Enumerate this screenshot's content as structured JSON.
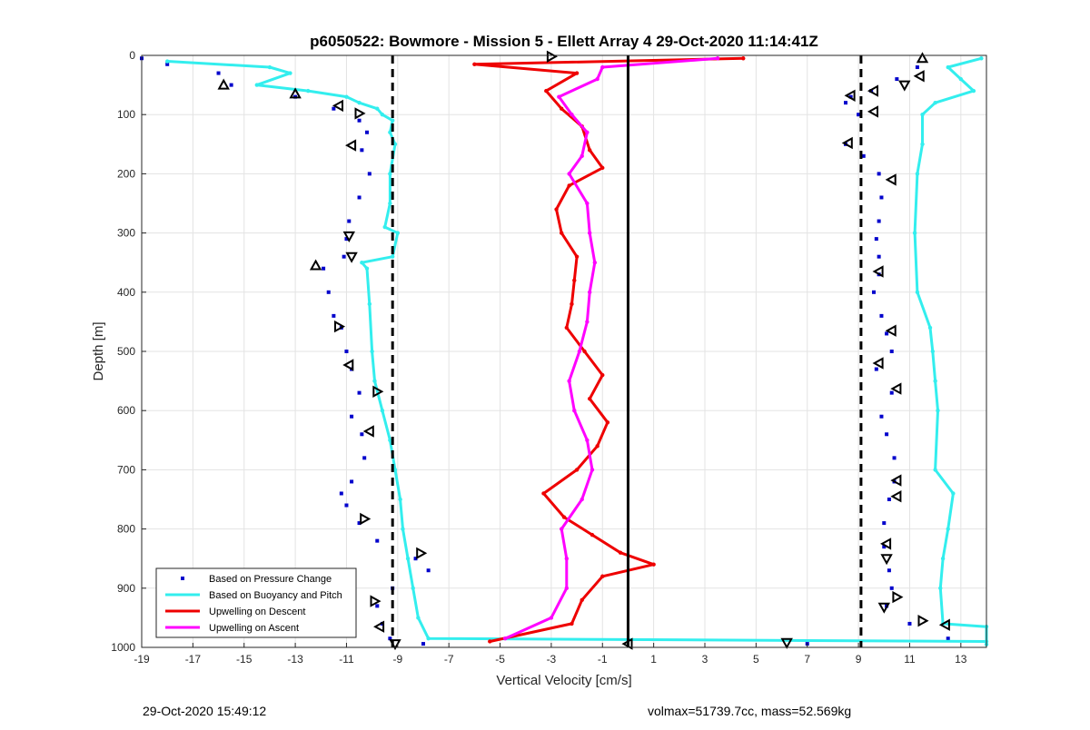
{
  "chart_data": {
    "type": "scatter",
    "title": "p6050522: Bowmore - Mission 5 - Ellett Array 4 29-Oct-2020 11:14:41Z",
    "xlabel": "Vertical Velocity [cm/s]",
    "ylabel": "Depth [m]",
    "xlim": [
      -19,
      14
    ],
    "ylim": [
      0,
      1000
    ],
    "y_reversed": true,
    "xticks": [
      -19,
      -17,
      -15,
      -13,
      -11,
      -9,
      -7,
      -5,
      -3,
      -1,
      1,
      3,
      5,
      7,
      9,
      11,
      13
    ],
    "yticks": [
      0,
      100,
      200,
      300,
      400,
      500,
      600,
      700,
      800,
      900,
      1000
    ],
    "grid": true,
    "legend_position": "bottom-left",
    "reference_lines": [
      {
        "x": -9.2,
        "style": "dashed",
        "color": "#000000"
      },
      {
        "x": 0,
        "style": "solid",
        "color": "#000000"
      },
      {
        "x": 9.1,
        "style": "dashed",
        "color": "#000000"
      }
    ],
    "series": [
      {
        "name": "Based on Pressure Change",
        "color": "#0000cc",
        "marker": "dot",
        "groups": [
          {
            "depth": [
              5,
              15,
              30,
              50,
              70,
              90,
              110,
              130,
              160,
              200,
              240,
              280,
              310,
              340,
              360,
              400,
              440,
              460,
              500,
              530,
              570,
              610,
              640,
              680,
              720,
              740,
              760,
              790,
              820,
              850,
              870,
              900,
              930,
              960,
              985
            ],
            "x": [
              -19,
              -18,
              -16,
              -15.5,
              -13,
              -11.5,
              -10.5,
              -10.2,
              -10.4,
              -10.1,
              -10.5,
              -10.9,
              -11,
              -11.1,
              -11.9,
              -11.7,
              -11.5,
              -11.2,
              -11,
              -10.8,
              -10.5,
              -10.8,
              -10.4,
              -10.3,
              -10.8,
              -11.2,
              -11,
              -10.5,
              -9.8,
              -8.3,
              -7.8,
              -9.2,
              -9.8,
              -9.6,
              -9.3
            ]
          },
          {
            "depth": [
              20,
              40,
              60,
              70,
              80,
              100,
              150,
              170,
              200,
              240,
              280,
              310,
              340,
              370,
              400,
              440,
              470,
              500,
              530,
              570,
              610,
              640,
              680,
              720,
              750,
              790,
              830,
              870,
              900,
              930,
              960,
              985
            ],
            "x": [
              11.3,
              10.5,
              9.5,
              8.7,
              8.5,
              9,
              8.5,
              9.2,
              9.8,
              9.9,
              9.8,
              9.7,
              9.8,
              9.8,
              9.6,
              9.9,
              10.1,
              10.3,
              9.7,
              10.3,
              9.9,
              10.1,
              10.4,
              10.4,
              10.2,
              10,
              10,
              10.2,
              10.3,
              10.1,
              11,
              12.5
            ]
          },
          {
            "depth": [
              994
            ],
            "x": [
              -8
            ]
          },
          {
            "depth": [
              994
            ],
            "x": [
              7
            ]
          }
        ]
      },
      {
        "name": "Based on Buoyancy and Pitch",
        "color": "#33eeee",
        "marker": "line",
        "groups": [
          {
            "depth": [
              10,
              20,
              30,
              50,
              60,
              70,
              80,
              90,
              100,
              110,
              130,
              150,
              200,
              250,
              290,
              300,
              340,
              350,
              360,
              420,
              500,
              550,
              600,
              650,
              700,
              750,
              800,
              850,
              900,
              950,
              985,
              990
            ],
            "x": [
              -18,
              -14,
              -13.2,
              -14.5,
              -12.5,
              -11,
              -10.5,
              -9.8,
              -9.6,
              -9.2,
              -9.3,
              -9.1,
              -9.3,
              -9.3,
              -9.5,
              -9,
              -9.2,
              -10.4,
              -10.2,
              -10.1,
              -10,
              -9.9,
              -9.6,
              -9.3,
              -9.1,
              -8.9,
              -8.8,
              -8.6,
              -8.4,
              -8.2,
              -7.8,
              14
            ]
          },
          {
            "depth": [
              5,
              20,
              40,
              60,
              80,
              100,
              150,
              200,
              300,
              400,
              460,
              500,
              550,
              600,
              700,
              740,
              800,
              850,
              900,
              960,
              965,
              995
            ],
            "x": [
              13.8,
              12.5,
              13,
              13.5,
              12,
              11.5,
              11.5,
              11.3,
              11.2,
              11.3,
              11.8,
              11.9,
              12,
              12.1,
              12,
              12.7,
              12.5,
              12.3,
              12.2,
              12.3,
              14,
              14
            ]
          }
        ]
      },
      {
        "name": "Upwelling on Descent",
        "color": "#ee0000",
        "marker": "line",
        "groups": [
          {
            "depth": [
              5,
              15,
              30,
              60,
              90,
              120,
              160,
              190,
              220,
              260,
              300,
              340,
              380,
              420,
              460,
              500,
              540,
              580,
              620,
              660,
              700,
              740,
              780,
              810,
              840,
              860,
              880,
              920,
              960,
              990
            ],
            "x": [
              4.5,
              -6,
              -2,
              -3.2,
              -2.6,
              -1.8,
              -1.5,
              -1,
              -2.3,
              -2.8,
              -2.6,
              -2,
              -2.1,
              -2.2,
              -2.4,
              -1.7,
              -1,
              -1.5,
              -0.8,
              -1.2,
              -2,
              -3.3,
              -2.5,
              -1.4,
              -0.3,
              1,
              -1,
              -1.8,
              -2.2,
              -5.4
            ]
          }
        ]
      },
      {
        "name": "Upwelling on Ascent",
        "color": "#ff00ff",
        "marker": "line",
        "groups": [
          {
            "depth": [
              5,
              20,
              40,
              70,
              100,
              130,
              170,
              200,
              250,
              300,
              350,
              400,
              450,
              500,
              550,
              600,
              650,
              700,
              750,
              800,
              850,
              900,
              950,
              985
            ],
            "x": [
              3.5,
              -1,
              -1.2,
              -2.7,
              -2.2,
              -1.6,
              -1.8,
              -2.3,
              -1.6,
              -1.5,
              -1.3,
              -1.5,
              -1.6,
              -1.9,
              -2.3,
              -2.1,
              -1.6,
              -1.4,
              -1.8,
              -2.6,
              -2.4,
              -2.4,
              -3,
              -4.8
            ]
          }
        ]
      }
    ],
    "annotations_markers": {
      "color": "#000000",
      "points": [
        {
          "x": -15.8,
          "y": 50,
          "shape": "triangle-up"
        },
        {
          "x": -13,
          "y": 65,
          "shape": "triangle-up"
        },
        {
          "x": -11.3,
          "y": 85,
          "shape": "triangle-left"
        },
        {
          "x": -10.5,
          "y": 98,
          "shape": "triangle-right"
        },
        {
          "x": -10.8,
          "y": 152,
          "shape": "triangle-left"
        },
        {
          "x": -10.9,
          "y": 305,
          "shape": "triangle-down"
        },
        {
          "x": -10.8,
          "y": 340,
          "shape": "triangle-down"
        },
        {
          "x": -12.2,
          "y": 355,
          "shape": "triangle-up"
        },
        {
          "x": -11.3,
          "y": 458,
          "shape": "triangle-right"
        },
        {
          "x": -10.9,
          "y": 523,
          "shape": "triangle-left"
        },
        {
          "x": -9.8,
          "y": 568,
          "shape": "triangle-right"
        },
        {
          "x": -10.1,
          "y": 635,
          "shape": "triangle-left"
        },
        {
          "x": -10.3,
          "y": 783,
          "shape": "triangle-right"
        },
        {
          "x": -8.1,
          "y": 841,
          "shape": "triangle-right"
        },
        {
          "x": -9.9,
          "y": 922,
          "shape": "triangle-right"
        },
        {
          "x": -9.7,
          "y": 965,
          "shape": "triangle-left"
        },
        {
          "x": -9.1,
          "y": 994,
          "shape": "triangle-down"
        },
        {
          "x": -3,
          "y": 2,
          "shape": "triangle-right"
        },
        {
          "x": 0,
          "y": 994,
          "shape": "triangle-left"
        },
        {
          "x": 6.2,
          "y": 992,
          "shape": "triangle-down"
        },
        {
          "x": 11.5,
          "y": 5,
          "shape": "triangle-up"
        },
        {
          "x": 11.4,
          "y": 35,
          "shape": "triangle-left"
        },
        {
          "x": 10.8,
          "y": 50,
          "shape": "triangle-down"
        },
        {
          "x": 9.6,
          "y": 60,
          "shape": "triangle-left"
        },
        {
          "x": 8.7,
          "y": 68,
          "shape": "triangle-left"
        },
        {
          "x": 9.6,
          "y": 95,
          "shape": "triangle-left"
        },
        {
          "x": 8.6,
          "y": 148,
          "shape": "triangle-left"
        },
        {
          "x": 10.3,
          "y": 210,
          "shape": "triangle-left"
        },
        {
          "x": 9.8,
          "y": 365,
          "shape": "triangle-left"
        },
        {
          "x": 10.3,
          "y": 465,
          "shape": "triangle-left"
        },
        {
          "x": 9.8,
          "y": 520,
          "shape": "triangle-left"
        },
        {
          "x": 10.5,
          "y": 563,
          "shape": "triangle-left"
        },
        {
          "x": 10.5,
          "y": 718,
          "shape": "triangle-left"
        },
        {
          "x": 10.5,
          "y": 745,
          "shape": "triangle-left"
        },
        {
          "x": 10.1,
          "y": 825,
          "shape": "triangle-left"
        },
        {
          "x": 10.1,
          "y": 850,
          "shape": "triangle-down"
        },
        {
          "x": 10.5,
          "y": 915,
          "shape": "triangle-right"
        },
        {
          "x": 10,
          "y": 932,
          "shape": "triangle-down"
        },
        {
          "x": 11.5,
          "y": 955,
          "shape": "triangle-right"
        },
        {
          "x": 12.4,
          "y": 962,
          "shape": "triangle-left"
        }
      ]
    }
  },
  "footer": {
    "timestamp": "29-Oct-2020 15:49:12",
    "volume_mass": "volmax=51739.7cc, mass=52.569kg"
  }
}
